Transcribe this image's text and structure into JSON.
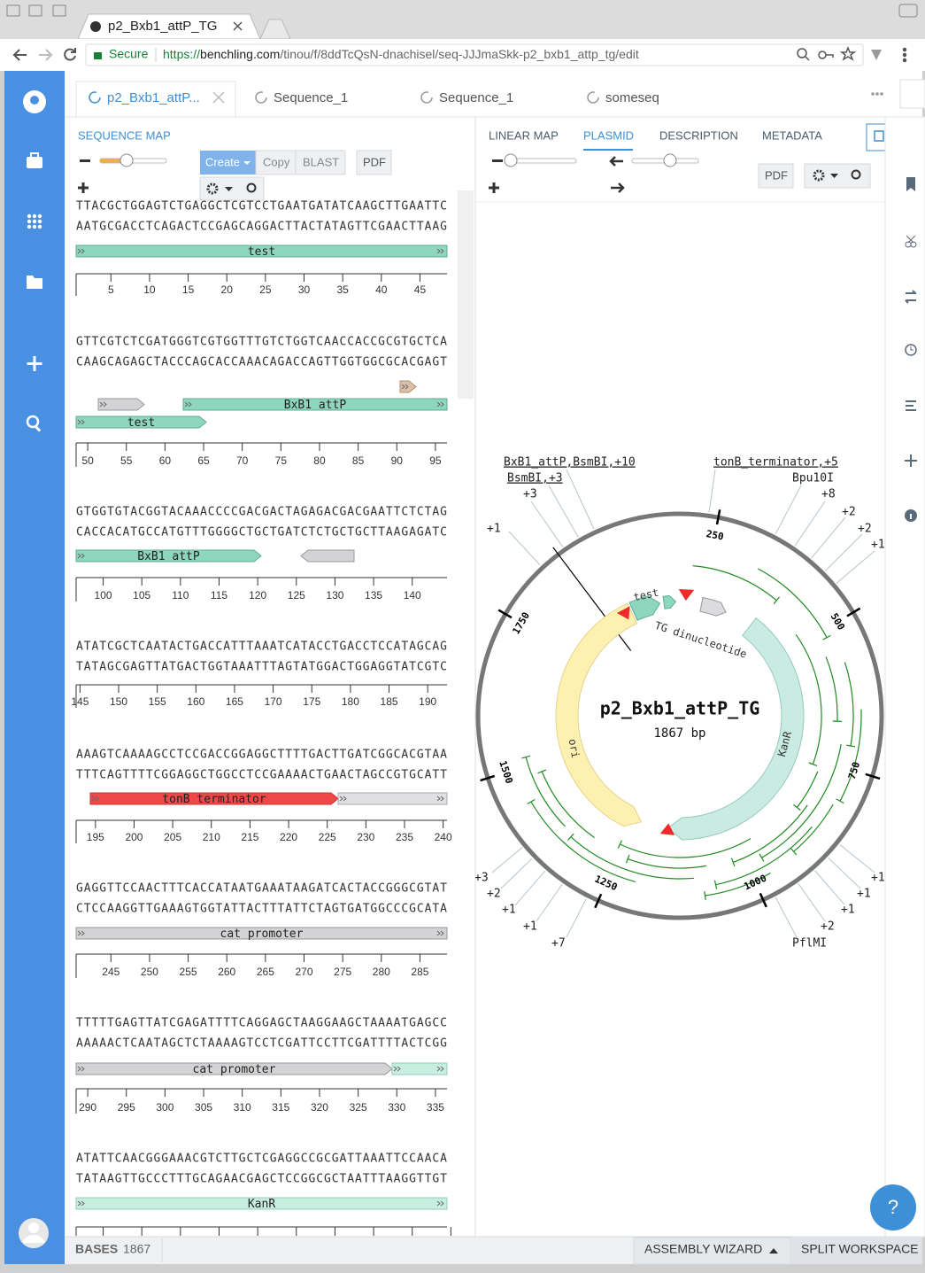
{
  "browser": {
    "tab_title": "p2_Bxb1_attP_TG",
    "secure": "Secure",
    "url_scheme": "https://",
    "url_host": "benchling.com",
    "url_path": "/tinou/f/8ddTcQsN-dnachisel/seq-JJJmaSkk-p2_bxb1_attp_tg/edit"
  },
  "tabs": [
    "p2_Bxb1_attP...",
    "Sequence_1",
    "Sequence_1",
    "someseq"
  ],
  "left_panel": {
    "title": "SEQUENCE MAP",
    "create": "Create",
    "copy": "Copy",
    "blast": "BLAST",
    "pdf": "PDF"
  },
  "sequence_blocks": [
    {
      "top": "TTACGCTGGAGTCTGAGGCTCGTCCTGAATGATATCAAGCTTGAATTC",
      "bottom": "AATGCGACCTCAGACTCCGAGCAGGACTTACTATAGTTCGAACTTAAG",
      "features": [
        "test"
      ],
      "ticks": [
        5,
        10,
        15,
        20,
        25,
        30,
        35,
        40,
        45
      ]
    },
    {
      "top": "GTTCGTCTCGATGGGTCGTGGTTTGTCTGGTCAACCACCGCGTGCTCA",
      "bottom": "CAAGCAGAGCTACCCAGCACCAAACAGACCAGTTGGTGGCGCACGAGT",
      "features": [
        "BxB1 attP",
        "test"
      ],
      "ticks": [
        50,
        55,
        60,
        65,
        70,
        75,
        80,
        85,
        90,
        95
      ]
    },
    {
      "top": "GTGGTGTACGGTACAAACCCCGACGACTAGAGACGACGAATTCTCTAG",
      "bottom": "CACCACATGCCATGTTTGGGGCTGCTGATCTCTGCTGCTTAAGAGATC",
      "features": [
        "BxB1 attP"
      ],
      "ticks": [
        100,
        105,
        110,
        115,
        120,
        125,
        130,
        135,
        140
      ]
    },
    {
      "top": "ATATCGCTCAATACTGACCATTTAAATCATACCTGACCTCCATAGCAG",
      "bottom": "TATAGCGAGTTATGACTGGTAAATTTAGTATGGACTGGAGGTATCGTC",
      "features": [],
      "ticks": [
        145,
        150,
        155,
        160,
        165,
        170,
        175,
        180,
        185,
        190
      ]
    },
    {
      "top": "AAAGTCAAAAGCCTCCGACCGGAGGCTTTTGACTTGATCGGCACGTAA",
      "bottom": "TTTCAGTTTTCGGAGGCTGGCCTCCGAAAACTGAACTAGCCGTGCATT",
      "features": [
        "tonB terminator"
      ],
      "ticks": [
        195,
        200,
        205,
        210,
        215,
        220,
        225,
        230,
        235,
        240
      ]
    },
    {
      "top": "GAGGTTCCAACTTTCACCATAATGAAATAAGATCACTACCGGGCGTAT",
      "bottom": "CTCCAAGGTTGAAAGTGGTATTACTTTATTCTAGTGATGGCCCGCATA",
      "features": [
        "cat promoter"
      ],
      "ticks": [
        245,
        250,
        255,
        260,
        265,
        270,
        275,
        280,
        285
      ]
    },
    {
      "top": "TTTTTGAGTTATCGAGATTTTCAGGAGCTAAGGAAGCTAAAATGAGCC",
      "bottom": "AAAAACTCAATAGCTCTAAAAGTCCTCGATTCCTTCGATTTTACTCGG",
      "features": [
        "cat promoter"
      ],
      "ticks": [
        290,
        295,
        300,
        305,
        310,
        315,
        320,
        325,
        330,
        335
      ]
    },
    {
      "top": "ATATTCAACGGGAAACGTCTTGCTCGAGGCCGCGATTAAATTCCAACA",
      "bottom": "TATAAGTTGCCCTTTGCAGAACGAGCTCCGGCGCTAATTTAAGGTTGT",
      "features": [
        "KanR"
      ],
      "ticks": []
    }
  ],
  "right_panel": {
    "tabs": [
      "LINEAR MAP",
      "PLASMID",
      "DESCRIPTION",
      "METADATA"
    ],
    "pdf": "PDF"
  },
  "plasmid": {
    "name": "p2_Bxb1_attP_TG",
    "size_label": "1867 bp",
    "ticks": [
      250,
      500,
      750,
      1000,
      1250,
      1500,
      1750
    ],
    "features": [
      "test",
      "TG dinucleotide",
      "ori",
      "KanR"
    ],
    "site_labels": [
      "BxB1_attP,BsmBI,+10",
      "BsmBI,+3",
      "+3",
      "+1",
      "tonB_terminator,+5",
      "Bpu10I",
      "+8",
      "+2",
      "+2",
      "+1",
      "+3",
      "+2",
      "+1",
      "+1",
      "+7",
      "+1",
      "+1",
      "+1",
      "+2",
      "PflMI"
    ]
  },
  "footer": {
    "bases_label": "BASES",
    "bases": 1867,
    "assembly_wizard": "ASSEMBLY WIZARD",
    "split_workspace": "SPLIT WORKSPACE",
    "help": "?"
  }
}
